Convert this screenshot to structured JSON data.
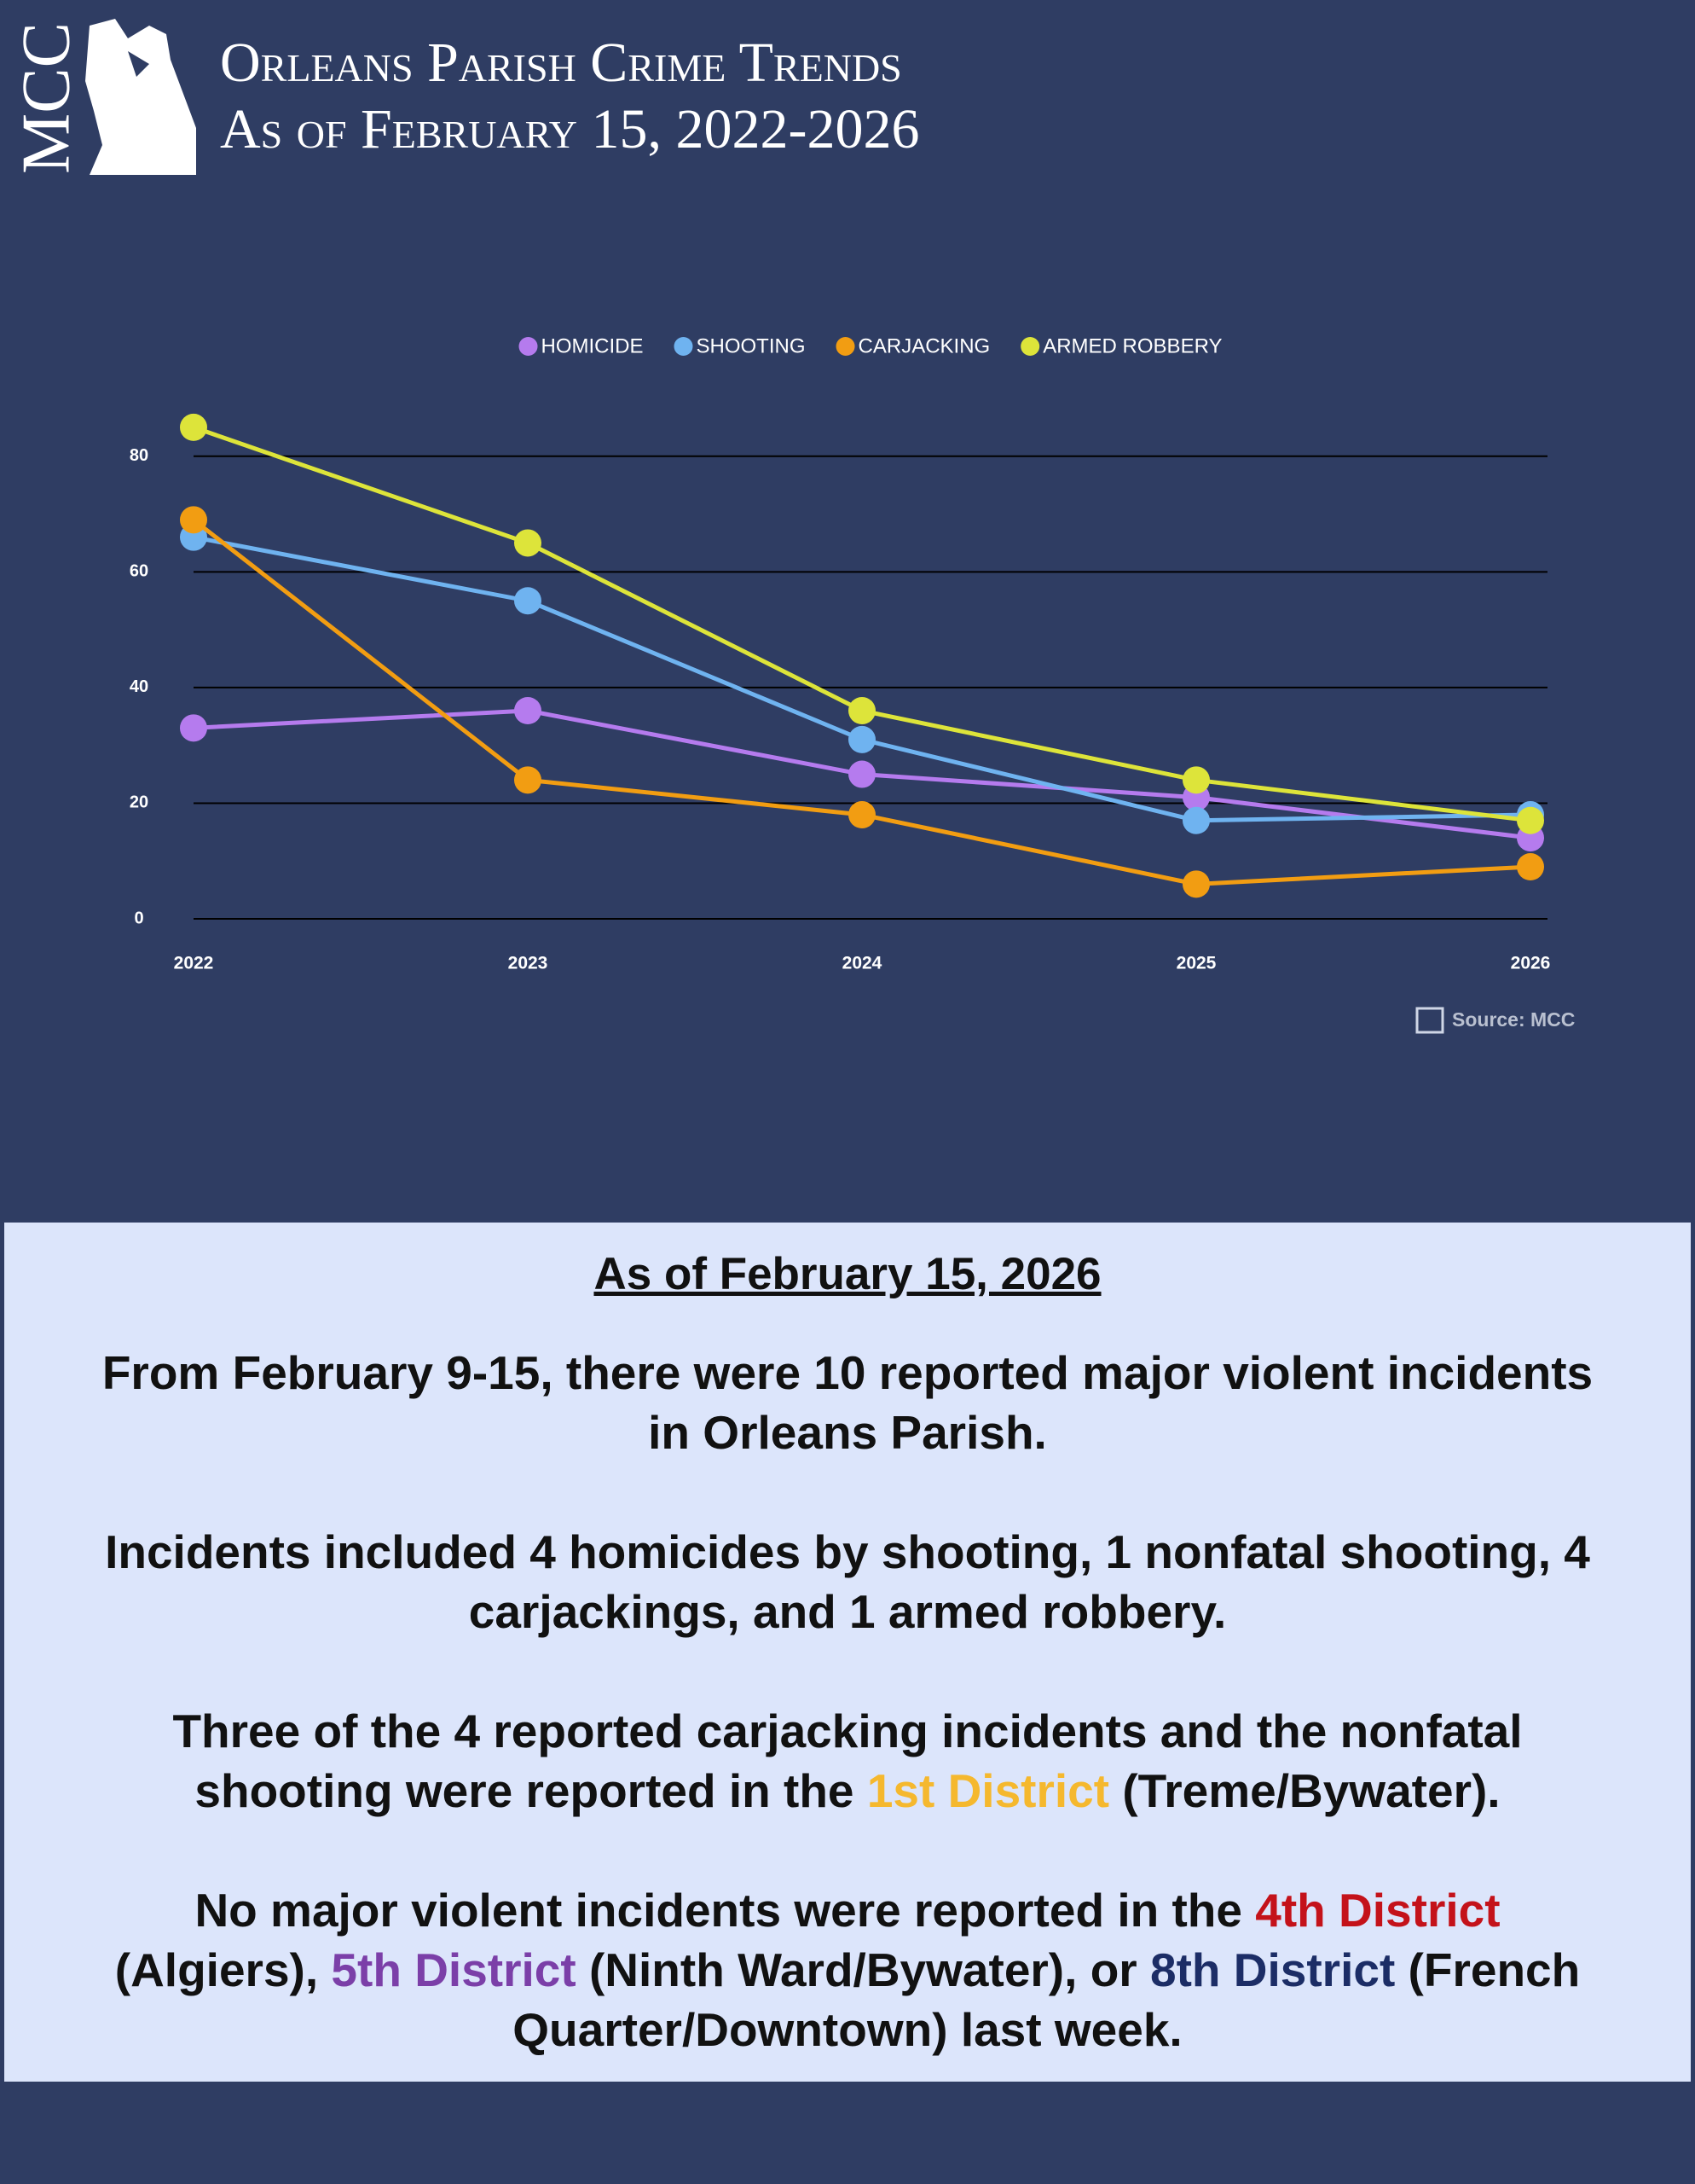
{
  "header": {
    "logo_text": "MCC",
    "title_line1": "Orleans Parish Crime Trends",
    "title_line2": "As of February 15, 2022-2026"
  },
  "chart_data": {
    "type": "line",
    "categories": [
      "2022",
      "2023",
      "2024",
      "2025",
      "2026"
    ],
    "series": [
      {
        "name": "HOMICIDE",
        "color": "#b57bee",
        "values": [
          33,
          36,
          25,
          21,
          14
        ]
      },
      {
        "name": "SHOOTING",
        "color": "#6fb3f0",
        "values": [
          66,
          55,
          31,
          17,
          18
        ]
      },
      {
        "name": "CARJACKING",
        "color": "#f29d12",
        "values": [
          69,
          24,
          18,
          6,
          9
        ]
      },
      {
        "name": "ARMED ROBBERY",
        "color": "#dde43a",
        "values": [
          85,
          65,
          36,
          24,
          17
        ]
      }
    ],
    "ylim": [
      0,
      90
    ],
    "yticks": [
      0,
      20,
      40,
      60,
      80
    ],
    "grid": true,
    "legend": "top",
    "source": "Source: MCC"
  },
  "text": {
    "heading": "As of February 15, 2026",
    "paragraphs": [
      [
        {
          "text": "From February 9-15, there were 10 reported major violent incidents in Orleans Parish."
        }
      ],
      [
        {
          "text": "Incidents included 4 homicides by shooting, 1 nonfatal shooting, 4 carjackings, and 1 armed robbery."
        }
      ],
      [
        {
          "text": "Three of the 4 reported carjacking incidents and the nonfatal shooting were reported in the "
        },
        {
          "text": "1st District",
          "color": "#f5b82e"
        },
        {
          "text": " (Treme/Bywater)."
        }
      ],
      [
        {
          "text": "No major violent incidents were reported in the "
        },
        {
          "text": "4th District",
          "color": "#c4121a"
        },
        {
          "text": " (Algiers), "
        },
        {
          "text": "5th District",
          "color": "#7b3fa8"
        },
        {
          "text": " (Ninth Ward/Bywater), or "
        },
        {
          "text": "8th District",
          "color": "#1c2d66"
        },
        {
          "text": " (French Quarter/Downtown) last week."
        }
      ]
    ]
  }
}
